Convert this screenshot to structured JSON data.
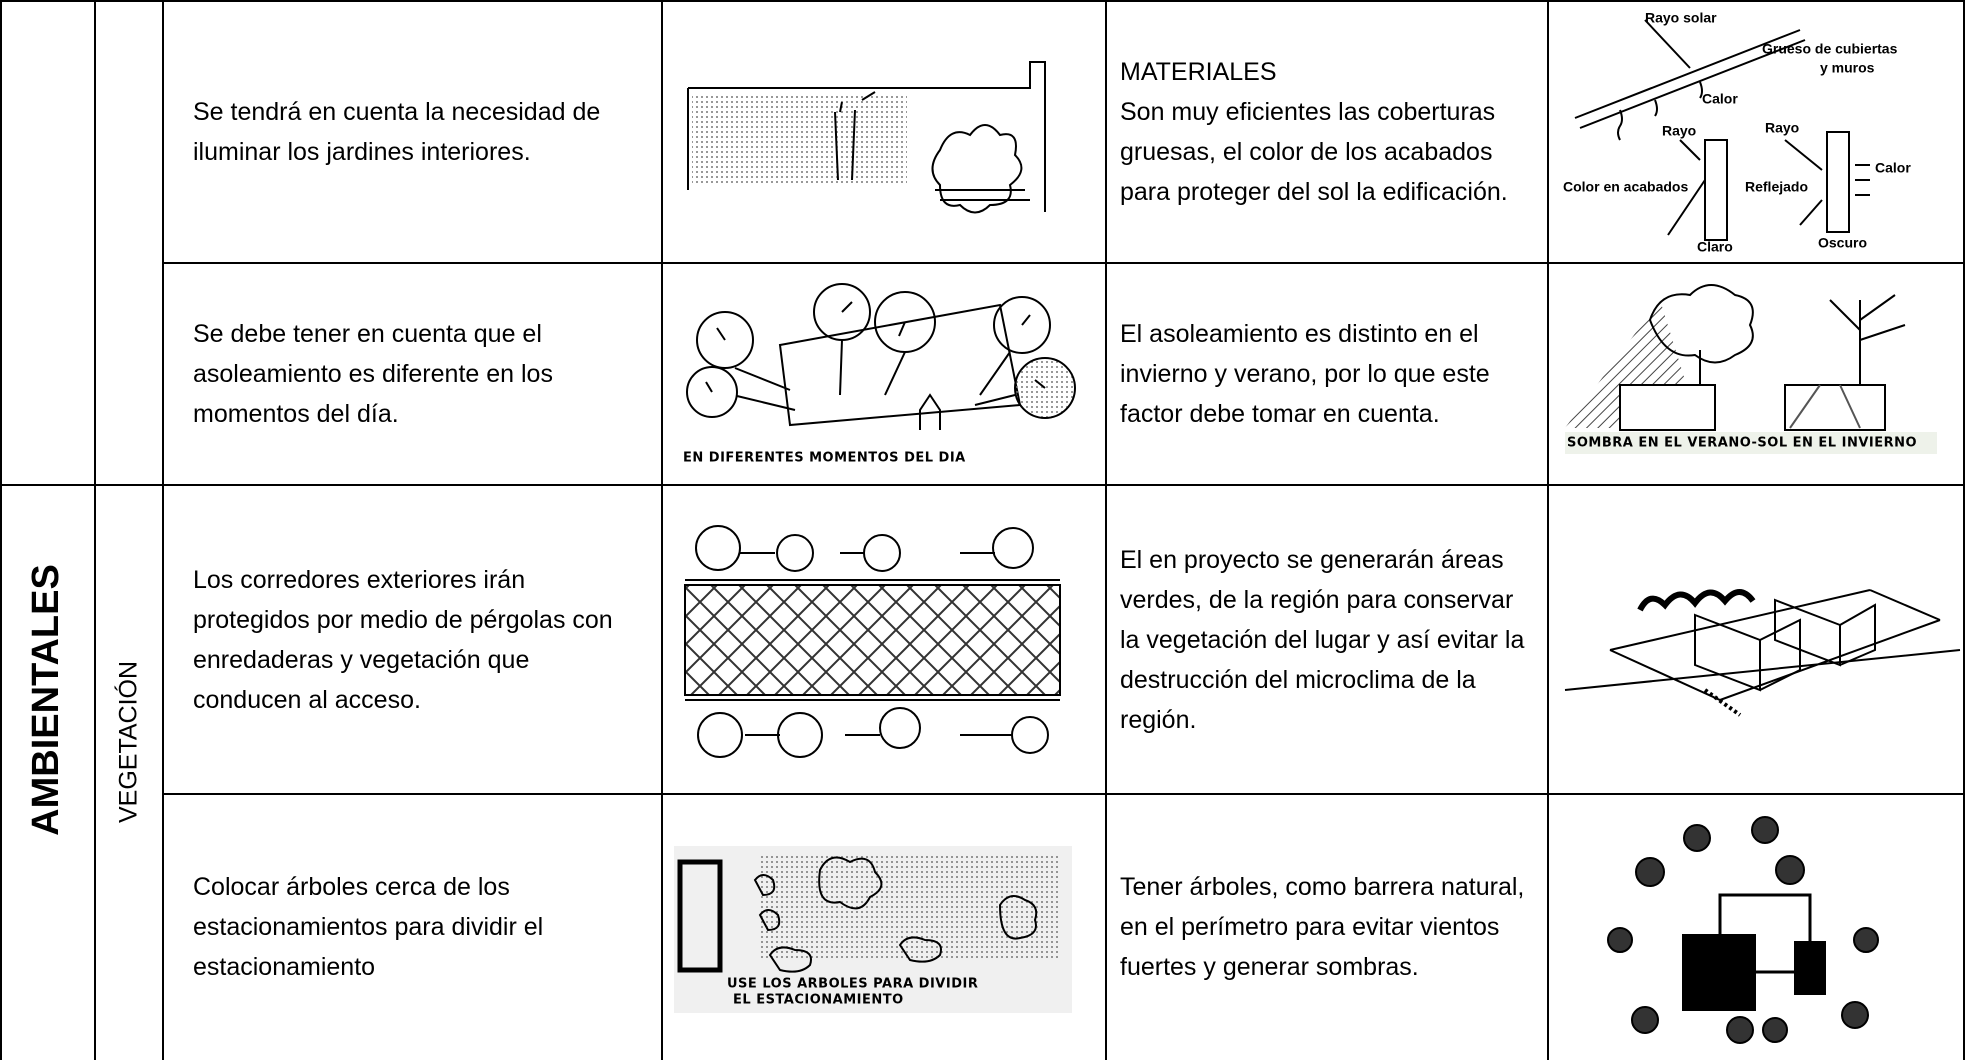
{
  "table": {
    "groups": [
      {
        "category": "AMBIENTALES",
        "subcategory": "VEGETACIÓN"
      }
    ],
    "rows": [
      {
        "criterion": "Se tendrá en cuenta la necesidad de iluminar los jardines interiores.",
        "description_heading": "MATERIALES",
        "description": "Son muy eficientes las coberturas gruesas, el color de los acabados para proteger del sol la edificación.",
        "diagram_labels": [
          "Rayo solar",
          "Grueso de cubiertas",
          "y muros",
          "Calor",
          "Rayo",
          "Rayo",
          "Calor",
          "Color en acabados",
          "Reflejado",
          "Claro",
          "Oscuro"
        ]
      },
      {
        "criterion": "Se debe tener en cuenta que el asoleamiento es diferente en los momentos del día.",
        "sketch_caption": "EN DIFERENTES MOMENTOS DEL DIA",
        "description": "El asoleamiento es distinto en el invierno y verano, por lo que este factor debe tomar en cuenta.",
        "diagram_caption": "SOMBRA EN EL VERANO-SOL EN EL INVIERNO"
      },
      {
        "criterion": "Los corredores exteriores irán protegidos por medio de pérgolas con enredaderas y vegetación que conducen al acceso.",
        "description": "El en proyecto se generarán áreas verdes, de la región para conservar la vegetación del lugar y así evitar la destrucción del microclima de la región."
      },
      {
        "criterion": "Colocar árboles cerca de los estacionamientos para dividir el estacionamiento",
        "sketch_caption": [
          "USE LOS ARBOLES PARA DIVIDIR",
          "EL ESTACIONAMIENTO"
        ],
        "description": "Tener árboles, como barrera natural, en el perímetro para evitar vientos fuertes y generar sombras."
      }
    ]
  }
}
